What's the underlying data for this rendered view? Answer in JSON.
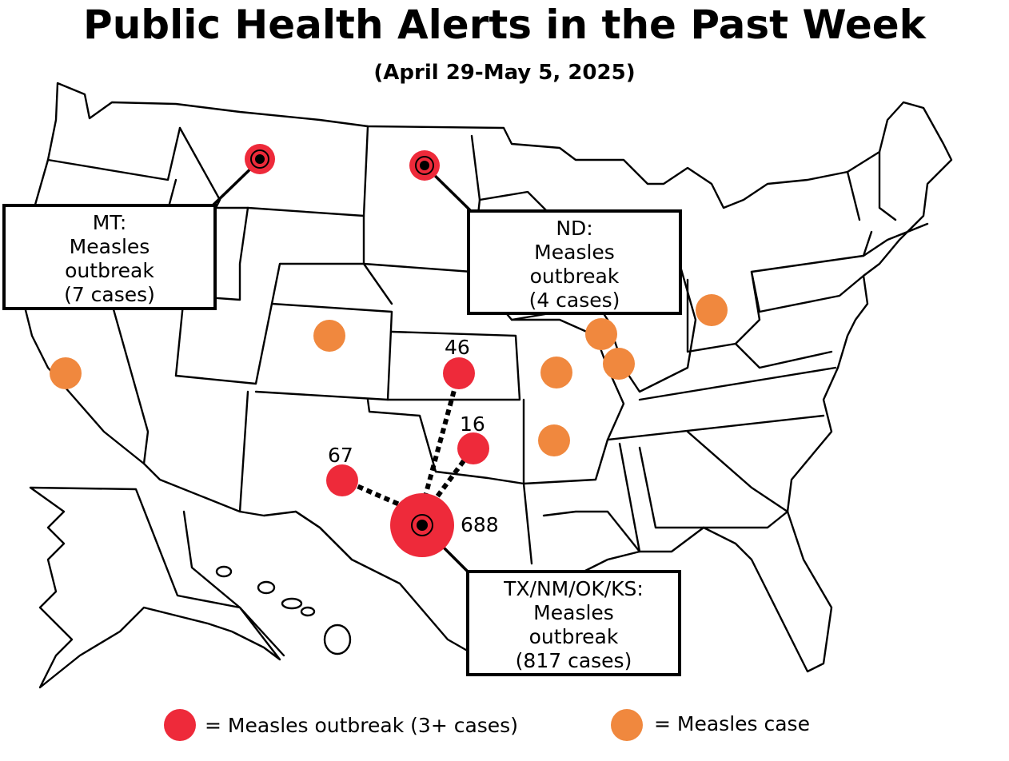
{
  "title": "Public Health Alerts in the Past Week",
  "subtitle": "(April 29-May 5, 2025)",
  "colors": {
    "outbreak": "#ee2a3a",
    "case": "#f0883e",
    "outline": "#000000"
  },
  "callouts": {
    "mt": {
      "line1": "MT:",
      "line2": "Measles",
      "line3": "outbreak",
      "line4": "(7 cases)"
    },
    "nd": {
      "line1": "ND:",
      "line2": "Measles",
      "line3": "outbreak",
      "line4": "(4 cases)"
    },
    "tx": {
      "line1": "TX/NM/OK/KS:",
      "line2": "Measles",
      "line3": "outbreak",
      "line4": "(817 cases)"
    }
  },
  "cluster_labels": {
    "ks": "46",
    "ok": "16",
    "nm": "67",
    "tx": "688"
  },
  "legend": {
    "outbreak": "= Measles outbreak (3+ cases)",
    "case": "= Measles case"
  }
}
